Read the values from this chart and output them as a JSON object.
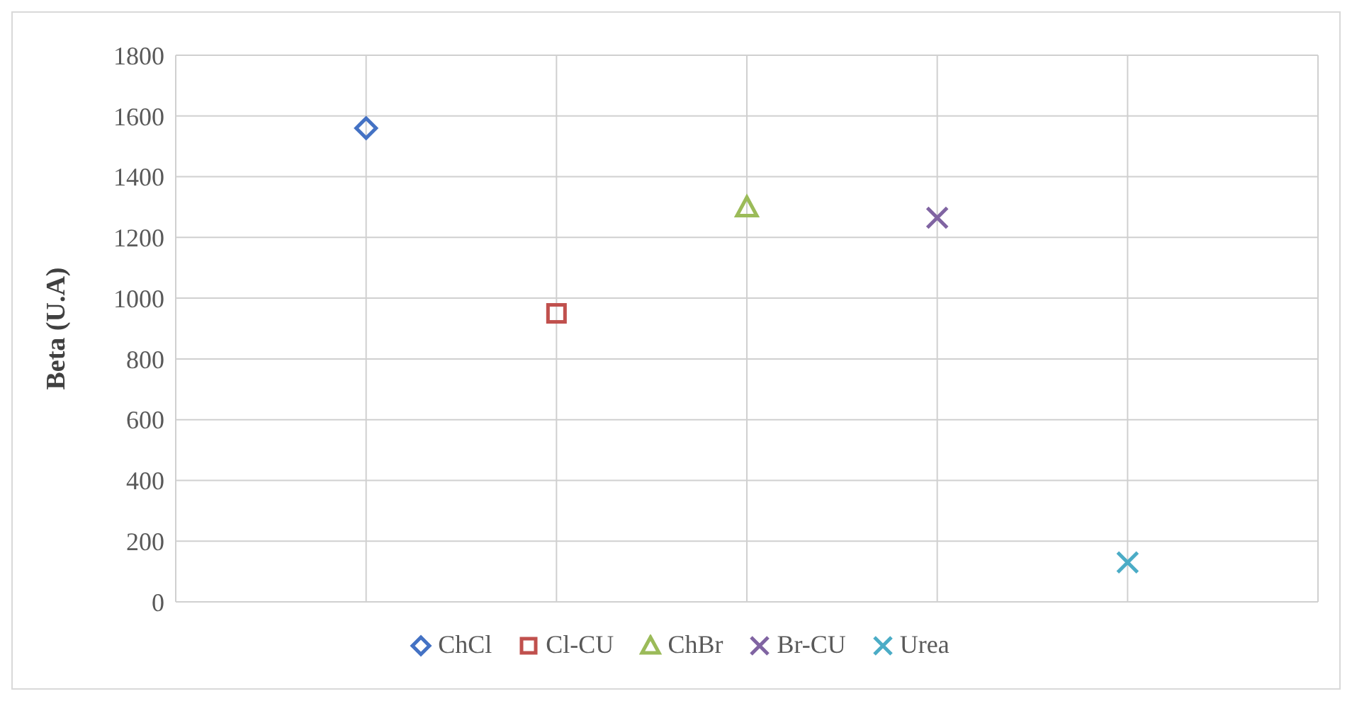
{
  "chart_data": {
    "type": "scatter",
    "ylabel": "Beta (U.A)",
    "categories": [
      null,
      null,
      null,
      null,
      null
    ],
    "ylim": [
      0,
      1800
    ],
    "yticks": [
      0,
      200,
      400,
      600,
      800,
      1000,
      1200,
      1400,
      1600,
      1800
    ],
    "tick_labels": "y",
    "grid": true,
    "legend": "bottom",
    "series": [
      {
        "name": "ChCl",
        "color": "#4472c4",
        "marker": "diamond",
        "values": [
          1560,
          null,
          null,
          null,
          null
        ]
      },
      {
        "name": "Cl-CU",
        "color": "#c0504d",
        "marker": "square",
        "values": [
          null,
          950,
          null,
          null,
          null
        ]
      },
      {
        "name": "ChBr",
        "color": "#9bbb59",
        "marker": "triangle",
        "values": [
          null,
          null,
          1300,
          null,
          null
        ]
      },
      {
        "name": "Br-CU",
        "color": "#8064a2",
        "marker": "cross",
        "values": [
          null,
          null,
          null,
          1265,
          null
        ]
      },
      {
        "name": "Urea",
        "color": "#4bacc6",
        "marker": "cross",
        "values": [
          null,
          null,
          null,
          null,
          130
        ]
      }
    ]
  }
}
